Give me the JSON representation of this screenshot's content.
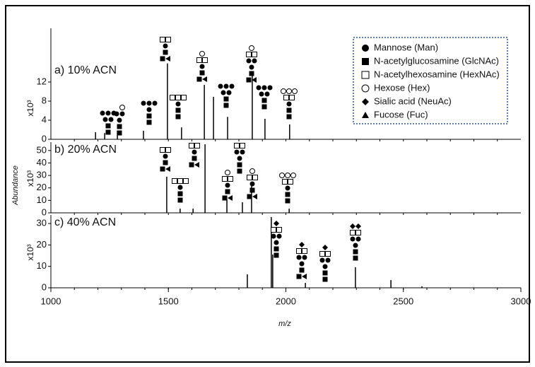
{
  "chart_data": [
    {
      "type": "bar",
      "label": "a) 10% ACN",
      "y_scale": "x10³",
      "xlim": [
        1000,
        3000
      ],
      "ylim": [
        0,
        16
      ],
      "yticks": [
        0,
        4,
        8,
        12
      ],
      "x": [
        1190,
        1229,
        1283,
        1394,
        1496,
        1556,
        1653,
        1692,
        1752,
        1857,
        1911,
        2016
      ],
      "values": [
        1.5,
        1.3,
        1.8,
        1.8,
        15.9,
        2.5,
        11.4,
        8.9,
        4.7,
        13.6,
        4.3,
        3.1
      ]
    },
    {
      "type": "bar",
      "label": "b) 20% ACN",
      "y_scale": "x10³",
      "xlim": [
        1000,
        3000
      ],
      "ylim": [
        0,
        55
      ],
      "yticks": [
        0,
        10,
        20,
        30,
        40,
        50
      ],
      "x": [
        1493,
        1550,
        1605,
        1656,
        1749,
        1815,
        1854,
        2014
      ],
      "values": [
        29,
        3.4,
        3.4,
        55,
        10.8,
        8.5,
        22,
        3.4
      ]
    },
    {
      "type": "bar",
      "label": "c) 40% ACN",
      "y_scale": "x10³",
      "xlim": [
        1000,
        3000
      ],
      "ylim": [
        0,
        33
      ],
      "yticks": [
        0,
        10,
        20,
        30
      ],
      "xticks": [
        1000,
        1500,
        2000,
        2500,
        3000
      ],
      "xlabel": "m/z",
      "ylabel": "Abundance",
      "x": [
        1836,
        1938,
        1944,
        2083,
        2296,
        2447,
        2579
      ],
      "values": [
        6.3,
        33,
        15.5,
        2.3,
        9.6,
        3.6,
        0.7
      ]
    }
  ],
  "legend": [
    "Mannose (Man)",
    "N-acetylglucosamine (GlcNAc)",
    "N-acetylhexosamine (HexNAc)",
    "Hexose (Hex)",
    "Sialic acid (NeuAc)",
    "Fucose (Fuc)"
  ]
}
